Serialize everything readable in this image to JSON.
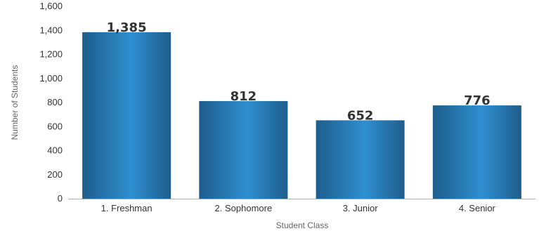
{
  "chart_data": {
    "type": "bar",
    "title": "",
    "xlabel": "Student Class",
    "ylabel": "Number of Students",
    "categories": [
      "1. Freshman",
      "2. Sophomore",
      "3. Junior",
      "4. Senior"
    ],
    "values": [
      1385,
      812,
      652,
      776
    ],
    "data_labels": [
      "1,385",
      "812",
      "652",
      "776"
    ],
    "y_ticks": [
      0,
      200,
      400,
      600,
      800,
      1000,
      1200,
      1400,
      1600
    ],
    "y_tick_labels": [
      "0",
      "200",
      "400",
      "600",
      "800",
      "1,000",
      "1,200",
      "1,400",
      "1,600"
    ],
    "ylim": [
      0,
      1600
    ],
    "grid": false,
    "legend": "none",
    "colors": {
      "bar_edge": "#1e5d8c",
      "bar_center": "#2f8fd0",
      "axis": "#b0b0b0",
      "text": "#333333",
      "axis_title": "#666666"
    }
  }
}
